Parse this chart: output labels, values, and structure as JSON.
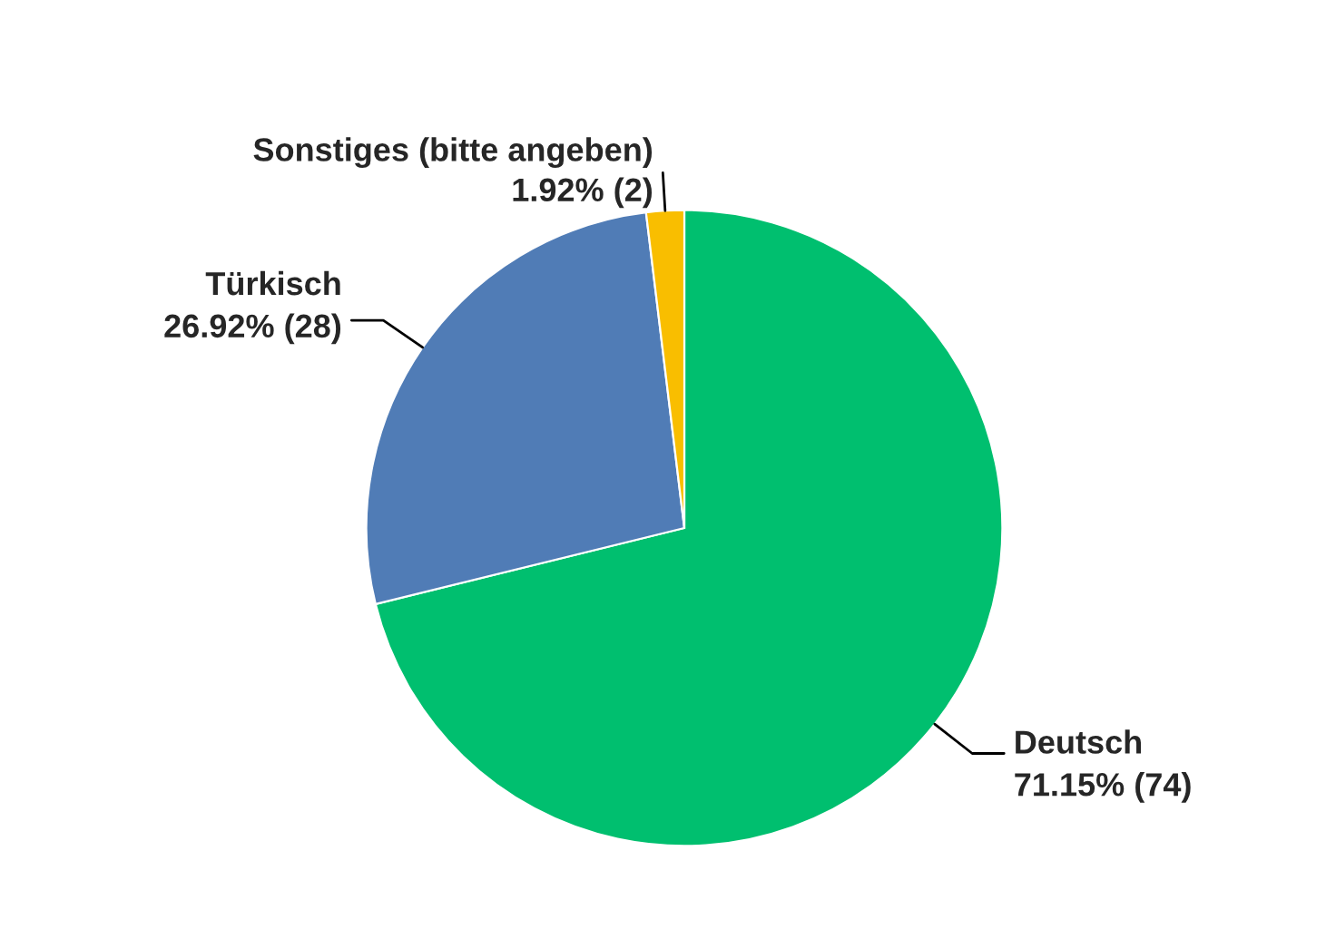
{
  "chart_data": {
    "type": "pie",
    "categories": [
      "Deutsch",
      "Türkisch",
      "Sonstiges (bitte angeben)"
    ],
    "values": [
      74,
      28,
      2
    ],
    "value_labels": [
      "71.15% (74)",
      "26.92% (28)",
      "1.92% (2)"
    ],
    "colors": [
      "#00bf6f",
      "#507cb6",
      "#f9be00"
    ],
    "legend": false
  }
}
